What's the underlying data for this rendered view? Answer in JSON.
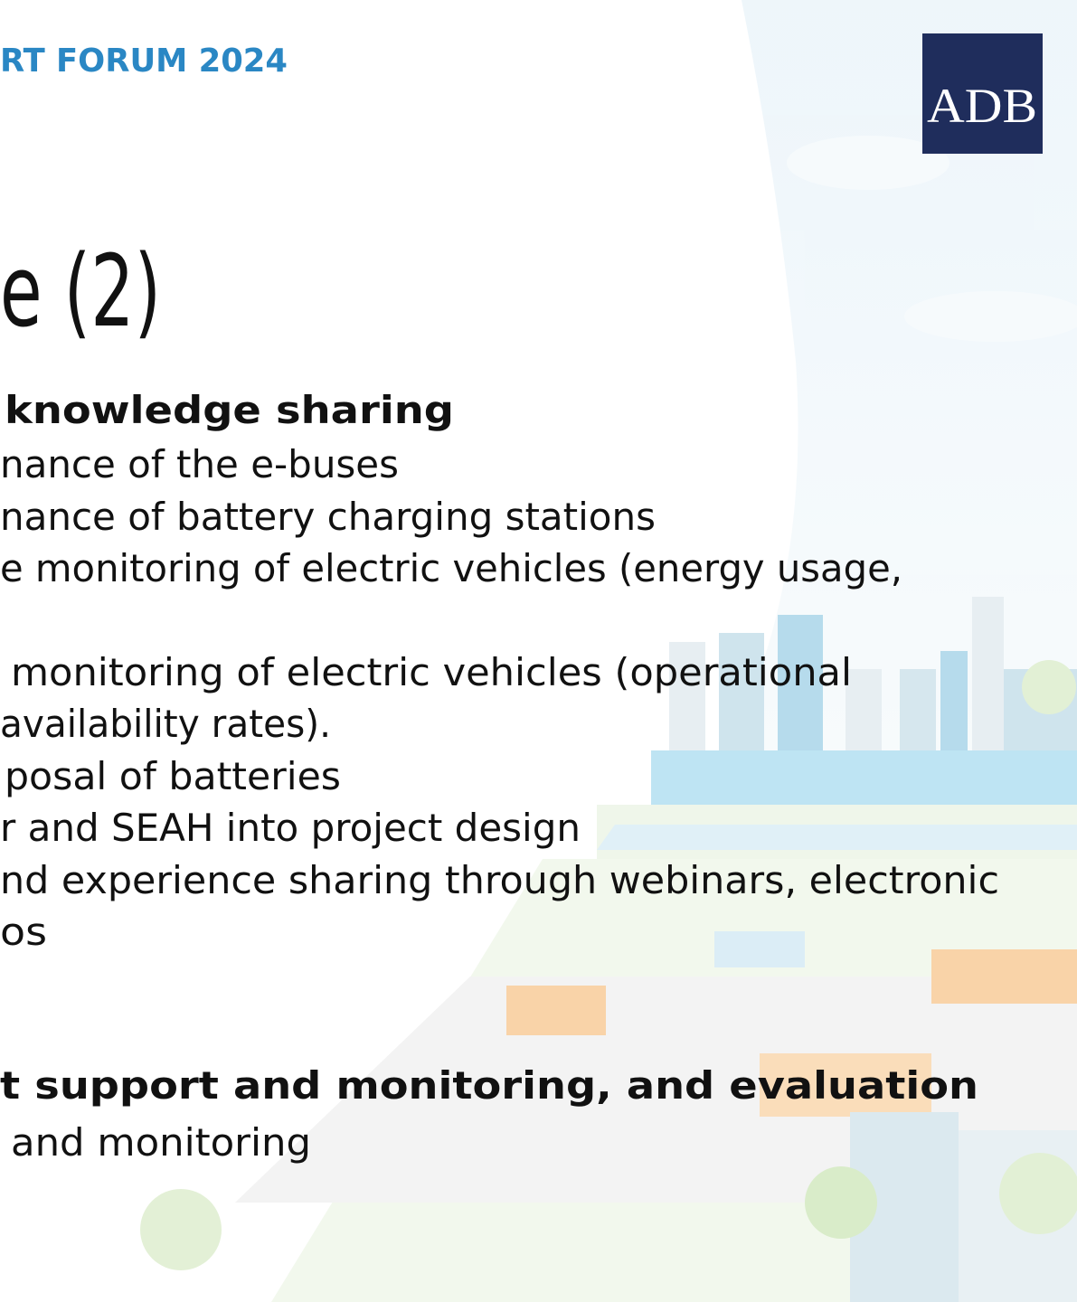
{
  "header": {
    "title": "RT FORUM 2024",
    "logo": "ADB"
  },
  "slide": {
    "title": "e (2)",
    "sections": [
      {
        "heading": "knowledge sharing",
        "items": [
          "nance of the e-buses",
          "nance of battery charging stations",
          "e monitoring of electric vehicles (energy usage,",
          "monitoring of electric vehicles (operational",
          "availability rates).",
          "posal of batteries",
          "r and SEAH into project design",
          "nd experience sharing through webinars, electronic",
          "os"
        ]
      },
      {
        "heading": "t support and monitoring, and evaluation",
        "items": [
          "and monitoring"
        ]
      }
    ]
  }
}
